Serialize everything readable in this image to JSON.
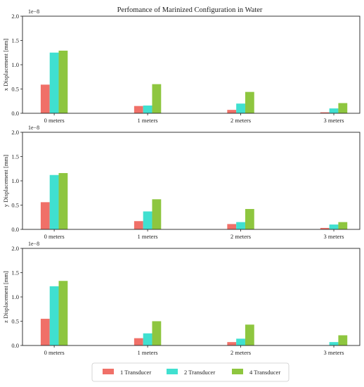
{
  "title": "Perfomance of Marinized Configuration in Water",
  "colors": {
    "1 Transducer": "#f07068",
    "2 Transducer": "#40e0d0",
    "4 Transducer": "#8ec63f"
  },
  "chart_data": [
    {
      "type": "bar",
      "title": "Perfomance of Marinized Configuration in Water",
      "ylabel": "x Displacement [mm]",
      "multiplier": "1e−8",
      "categories": [
        "0 meters",
        "1 meters",
        "2 meters",
        "3 meters"
      ],
      "ylim": [
        0,
        2.0
      ],
      "yticks": [
        "0.0",
        "0.5",
        "1.0",
        "1.5",
        "2.0"
      ],
      "series": [
        {
          "name": "1 Transducer",
          "values": [
            0.59,
            0.15,
            0.07,
            0.02
          ]
        },
        {
          "name": "2 Transducer",
          "values": [
            1.25,
            0.16,
            0.2,
            0.1
          ]
        },
        {
          "name": "4 Transducer",
          "values": [
            1.29,
            0.6,
            0.44,
            0.21
          ]
        }
      ]
    },
    {
      "type": "bar",
      "title": "",
      "ylabel": "y Displacement [mm]",
      "multiplier": "1e−8",
      "categories": [
        "0 meters",
        "1 meters",
        "2 meters",
        "3 meters"
      ],
      "ylim": [
        0,
        2.0
      ],
      "yticks": [
        "0.0",
        "0.5",
        "1.0",
        "1.5",
        "2.0"
      ],
      "series": [
        {
          "name": "1 Transducer",
          "values": [
            0.56,
            0.17,
            0.11,
            0.03
          ]
        },
        {
          "name": "2 Transducer",
          "values": [
            1.12,
            0.37,
            0.15,
            0.1
          ]
        },
        {
          "name": "4 Transducer",
          "values": [
            1.16,
            0.62,
            0.42,
            0.15
          ]
        }
      ]
    },
    {
      "type": "bar",
      "title": "",
      "ylabel": "z Displacement [mm]",
      "multiplier": "1e−8",
      "categories": [
        "0 meters",
        "1 meters",
        "2 meters",
        "3 meters"
      ],
      "ylim": [
        0,
        2.0
      ],
      "yticks": [
        "0.0",
        "0.5",
        "1.0",
        "1.5",
        "2.0"
      ],
      "series": [
        {
          "name": "1 Transducer",
          "values": [
            0.55,
            0.15,
            0.07,
            0.0
          ]
        },
        {
          "name": "2 Transducer",
          "values": [
            1.22,
            0.25,
            0.14,
            0.07
          ]
        },
        {
          "name": "4 Transducer",
          "values": [
            1.33,
            0.5,
            0.43,
            0.21
          ]
        }
      ]
    }
  ],
  "legend": {
    "placement": "bottom-center",
    "items": [
      "1 Transducer",
      "2 Transducer",
      "4 Transducer"
    ]
  }
}
